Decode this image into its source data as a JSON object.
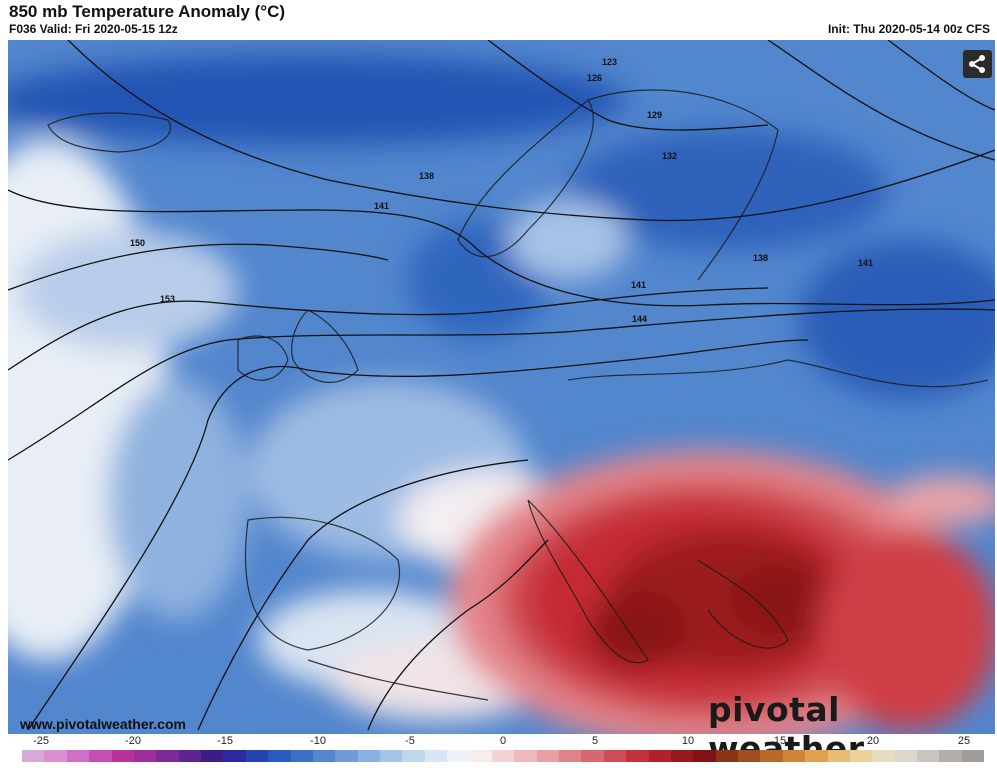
{
  "header": {
    "title": "850 mb Temperature Anomaly (°C)",
    "valid": "F036 Valid: Fri 2020-05-15 12z",
    "init": "Init: Thu 2020-05-14 00z CFS"
  },
  "map": {
    "contour_labels": [
      "123",
      "126",
      "129",
      "132",
      "138",
      "138",
      "141",
      "141",
      "141",
      "144",
      "150",
      "153"
    ],
    "colors": {
      "cold_deep": "#1f4fa8",
      "cold": "#3f74c4",
      "cool": "#8fb2df",
      "neutral": "#f4f1f2",
      "warm": "#e59aa0",
      "hot": "#c8262a",
      "hot_deep": "#8a1414"
    }
  },
  "share_button": {
    "icon": "share-icon"
  },
  "footer": {
    "site": "www.pivotalweather.com",
    "brand": "pivotal weather"
  },
  "colorbar": {
    "labels": [
      "-25",
      "-20",
      "-15",
      "-10",
      "-5",
      "0",
      "5",
      "10",
      "15",
      "20",
      "25"
    ],
    "colors": [
      "#d7a9d8",
      "#d98fd0",
      "#d06fc5",
      "#c44eb2",
      "#b83298",
      "#9c2f9c",
      "#7c2a9a",
      "#5b2592",
      "#3b1c88",
      "#2c2aa0",
      "#2443b2",
      "#2c5bc0",
      "#3b70c8",
      "#5586d0",
      "#6e9cd8",
      "#89b1e0",
      "#a5c4e8",
      "#c0d6ef",
      "#d8e5f4",
      "#eef2f8",
      "#f8eded",
      "#f3d3d4",
      "#eeb9bb",
      "#e89ea2",
      "#e08389",
      "#d76870",
      "#cd4c56",
      "#c2323d",
      "#b0212b",
      "#981820",
      "#801216",
      "#8a3418",
      "#a04e1e",
      "#b96a28",
      "#cf8436",
      "#dea150",
      "#e6bb74",
      "#ebd19a",
      "#e8dcc0",
      "#dcd6cc",
      "#c8c4c0",
      "#b2aeaa",
      "#a09c99"
    ]
  }
}
